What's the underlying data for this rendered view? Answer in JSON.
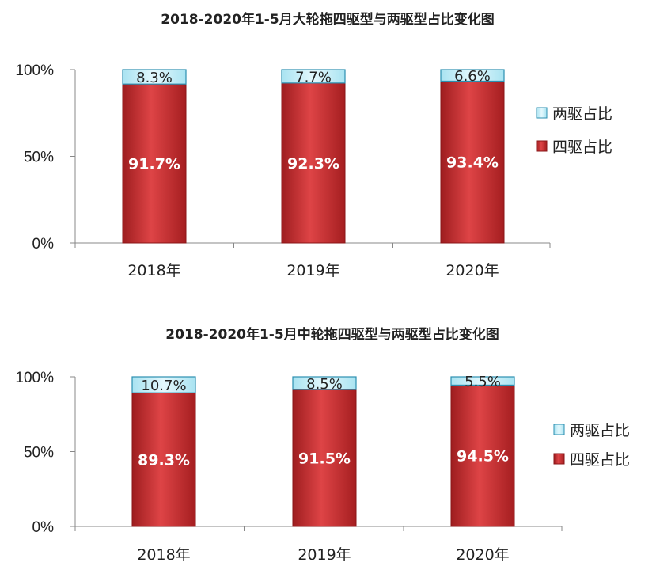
{
  "chart_data": [
    {
      "type": "bar",
      "stacked": true,
      "title": "2018-2020年1-5月大轮拖四驱型与两驱型占比变化图",
      "categories": [
        "2018年",
        "2019年",
        "2020年"
      ],
      "series": [
        {
          "name": "四驱占比",
          "values": [
            91.7,
            92.3,
            93.4
          ],
          "labels": [
            "91.7%",
            "92.3%",
            "93.4%"
          ],
          "color": "#c0282a"
        },
        {
          "name": "两驱占比",
          "values": [
            8.3,
            7.7,
            6.6
          ],
          "labels": [
            "8.3%",
            "7.7%",
            "6.6%"
          ],
          "color": "#bfeef8"
        }
      ],
      "yticks": [
        "0%",
        "50%",
        "100%"
      ],
      "ylim": [
        0,
        100
      ],
      "grid": false,
      "legend_position": "right"
    },
    {
      "type": "bar",
      "stacked": true,
      "title": "2018-2020年1-5月中轮拖四驱型与两驱型占比变化图",
      "categories": [
        "2018年",
        "2019年",
        "2020年"
      ],
      "series": [
        {
          "name": "四驱占比",
          "values": [
            89.3,
            91.5,
            94.5
          ],
          "labels": [
            "89.3%",
            "91.5%",
            "94.5%"
          ],
          "color": "#c0282a"
        },
        {
          "name": "两驱占比",
          "values": [
            10.7,
            8.5,
            5.5
          ],
          "labels": [
            "10.7%",
            "8.5%",
            "5.5%"
          ],
          "color": "#bfeef8"
        }
      ],
      "yticks": [
        "0%",
        "50%",
        "100%"
      ],
      "ylim": [
        0,
        100
      ],
      "grid": false,
      "legend_position": "right"
    }
  ]
}
